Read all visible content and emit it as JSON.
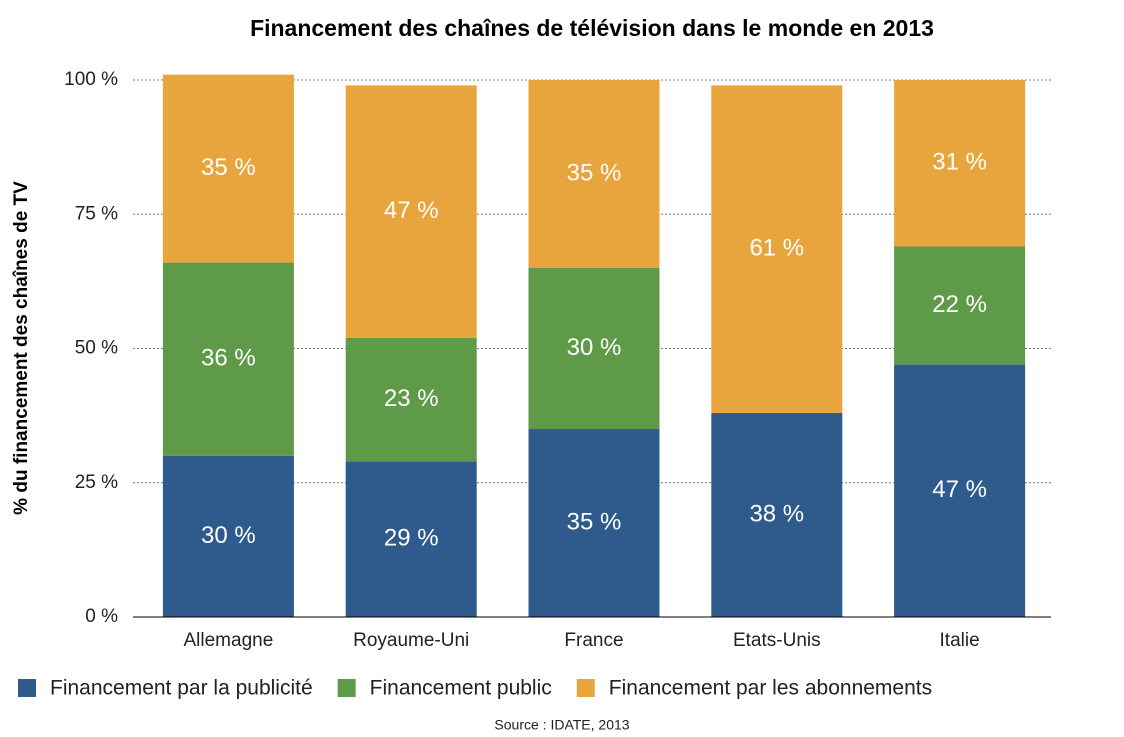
{
  "chart_data": {
    "type": "stacked_bar",
    "title": "Financement des chaînes de télévision dans le monde en 2013",
    "y_label": "% du financement des chaînes de TV",
    "source": "Source : IDATE, 2013",
    "categories": [
      "Allemagne",
      "Royaume-Uni",
      "France",
      "Etats-Unis",
      "Italie"
    ],
    "series": [
      {
        "name": "Financement par la publicité",
        "color": "#2e5a8c",
        "values": [
          30,
          29,
          35,
          38,
          47
        ],
        "value_labels": [
          "30 %",
          "29 %",
          "35 %",
          "38 %",
          "47 %"
        ]
      },
      {
        "name": "Financement public",
        "color": "#5e9a48",
        "values": [
          36,
          23,
          30,
          null,
          22
        ],
        "value_labels": [
          "36 %",
          "23 %",
          "30 %",
          null,
          "22 %"
        ]
      },
      {
        "name": "Financement par les abonnements",
        "color": "#e8a53e",
        "values": [
          35,
          47,
          35,
          61,
          31
        ],
        "value_labels": [
          "35 %",
          "47 %",
          "35 %",
          "61 %",
          "31 %"
        ]
      }
    ],
    "ylim": [
      0,
      100
    ],
    "yticks": [
      {
        "value": 0,
        "label": "0 %"
      },
      {
        "value": 25,
        "label": "25 %"
      },
      {
        "value": 50,
        "label": "50 %"
      },
      {
        "value": 75,
        "label": "75 %"
      },
      {
        "value": 100,
        "label": "100 %"
      }
    ],
    "grid": true,
    "legend": "bottom"
  }
}
